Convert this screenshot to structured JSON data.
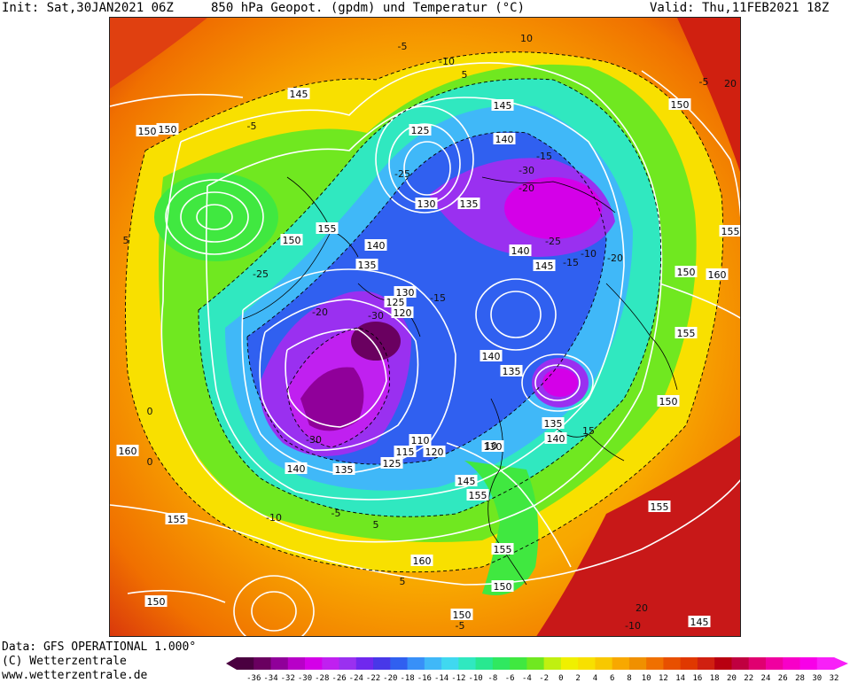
{
  "header": {
    "init": "Init: Sat,30JAN2021 06Z",
    "title": "850 hPa Geopot. (gpdm) und Temperatur (°C)",
    "valid": "Valid: Thu,11FEB2021 18Z"
  },
  "footer": {
    "line1": "Data: GFS OPERATIONAL 1.000°",
    "line2": "(C) Wetterzentrale",
    "line3": "www.wetterzentrale.de"
  },
  "legend": {
    "ticks": [
      "-36",
      "-34",
      "-32",
      "-30",
      "-28",
      "-26",
      "-24",
      "-22",
      "-20",
      "-18",
      "-16",
      "-14",
      "-12",
      "-10",
      "-8",
      "-6",
      "-4",
      "-2",
      "0",
      "2",
      "4",
      "6",
      "8",
      "10",
      "12",
      "14",
      "16",
      "18",
      "20",
      "22",
      "24",
      "26",
      "28",
      "30",
      "32"
    ],
    "colors": [
      "#4a0040",
      "#6a0060",
      "#90009a",
      "#b800c8",
      "#d400e8",
      "#c020f0",
      "#9a30f0",
      "#7028ee",
      "#4838e8",
      "#3060f0",
      "#3890f8",
      "#40b8f8",
      "#40d8f0",
      "#30e8c0",
      "#28e890",
      "#30e860",
      "#40e840",
      "#70e820",
      "#c0f010",
      "#f0f000",
      "#f8e000",
      "#f8c800",
      "#f8a800",
      "#f09000",
      "#f07000",
      "#e85000",
      "#e03800",
      "#d02010",
      "#b80010",
      "#c00040",
      "#e00070",
      "#f000a0",
      "#f800c8",
      "#f800e8",
      "#f820f8"
    ]
  },
  "map": {
    "geopotential_labels": [
      {
        "text": "150"
      },
      {
        "text": "145"
      },
      {
        "text": "150"
      },
      {
        "text": "150"
      },
      {
        "text": "125"
      },
      {
        "text": "145"
      },
      {
        "text": "140"
      },
      {
        "text": "130"
      },
      {
        "text": "135"
      },
      {
        "text": "155"
      },
      {
        "text": "150"
      },
      {
        "text": "155"
      },
      {
        "text": "140"
      },
      {
        "text": "145"
      },
      {
        "text": "140"
      },
      {
        "text": "135"
      },
      {
        "text": "150"
      },
      {
        "text": "160"
      },
      {
        "text": "130"
      },
      {
        "text": "125"
      },
      {
        "text": "120"
      },
      {
        "text": "155"
      },
      {
        "text": "140"
      },
      {
        "text": "135"
      },
      {
        "text": "150"
      },
      {
        "text": "135"
      },
      {
        "text": "140"
      },
      {
        "text": "110"
      },
      {
        "text": "115"
      },
      {
        "text": "120"
      },
      {
        "text": "130"
      },
      {
        "text": "125"
      },
      {
        "text": "140"
      },
      {
        "text": "135"
      },
      {
        "text": "160"
      },
      {
        "text": "145"
      },
      {
        "text": "155"
      },
      {
        "text": "155"
      },
      {
        "text": "155"
      },
      {
        "text": "155"
      },
      {
        "text": "160"
      },
      {
        "text": "150"
      },
      {
        "text": "150"
      },
      {
        "text": "145"
      },
      {
        "text": "150"
      }
    ],
    "temperature_labels": [
      {
        "text": "-5"
      },
      {
        "text": "10"
      },
      {
        "text": "-10"
      },
      {
        "text": "-5"
      },
      {
        "text": "-15"
      },
      {
        "text": "-20"
      },
      {
        "text": "-25"
      },
      {
        "text": "-30"
      },
      {
        "text": "5"
      },
      {
        "text": "-5"
      },
      {
        "text": "-25"
      },
      {
        "text": "-15"
      },
      {
        "text": "-20"
      },
      {
        "text": "-30"
      },
      {
        "text": "-10"
      },
      {
        "text": "-5"
      },
      {
        "text": "0"
      },
      {
        "text": "5"
      },
      {
        "text": "5"
      },
      {
        "text": "10"
      },
      {
        "text": "20"
      },
      {
        "text": "15"
      },
      {
        "text": "-10"
      },
      {
        "text": "-15"
      },
      {
        "text": "-20"
      },
      {
        "text": "-25"
      },
      {
        "text": "-30"
      },
      {
        "text": "0"
      },
      {
        "text": "5"
      },
      {
        "text": "-5"
      },
      {
        "text": "-10"
      },
      {
        "text": "20"
      }
    ]
  }
}
